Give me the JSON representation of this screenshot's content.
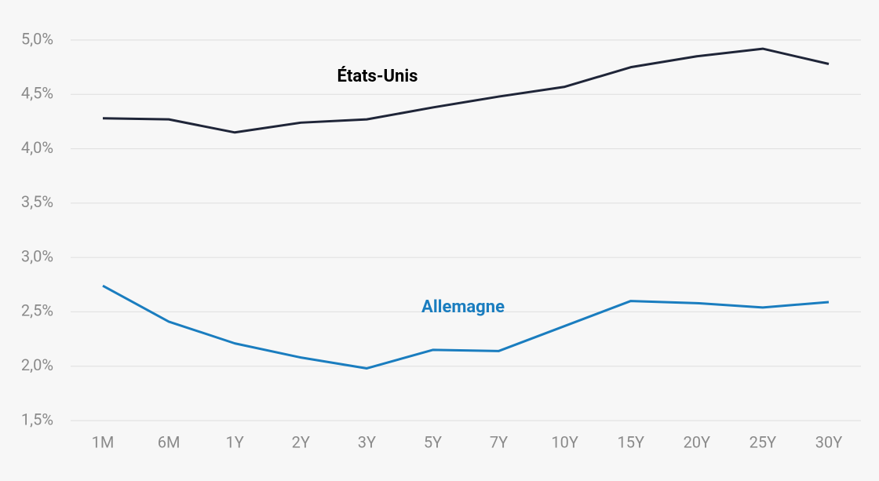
{
  "chart_data": {
    "type": "line",
    "categories": [
      "1M",
      "6M",
      "1Y",
      "2Y",
      "3Y",
      "5Y",
      "7Y",
      "10Y",
      "15Y",
      "20Y",
      "25Y",
      "30Y"
    ],
    "series": [
      {
        "name": "États-Unis",
        "color": "#1f2538",
        "values": [
          4.28,
          4.27,
          4.15,
          4.24,
          4.27,
          4.38,
          4.48,
          4.57,
          4.75,
          4.85,
          4.92,
          4.78
        ]
      },
      {
        "name": "Allemagne",
        "color": "#1a7dbf",
        "values": [
          2.74,
          2.41,
          2.21,
          2.08,
          1.98,
          2.15,
          2.14,
          2.37,
          2.6,
          2.58,
          2.54,
          2.59
        ]
      }
    ],
    "ylim": [
      1.5,
      5.0
    ],
    "yticks": [
      {
        "value": 1.5,
        "label": "1,5%"
      },
      {
        "value": 2.0,
        "label": "2,0%"
      },
      {
        "value": 2.5,
        "label": "2,5%"
      },
      {
        "value": 3.0,
        "label": "3,0%"
      },
      {
        "value": 3.5,
        "label": "3,5%"
      },
      {
        "value": 4.0,
        "label": "4,0%"
      },
      {
        "value": 4.5,
        "label": "4,5%"
      },
      {
        "value": 5.0,
        "label": "5,0%"
      }
    ],
    "grid": true
  }
}
